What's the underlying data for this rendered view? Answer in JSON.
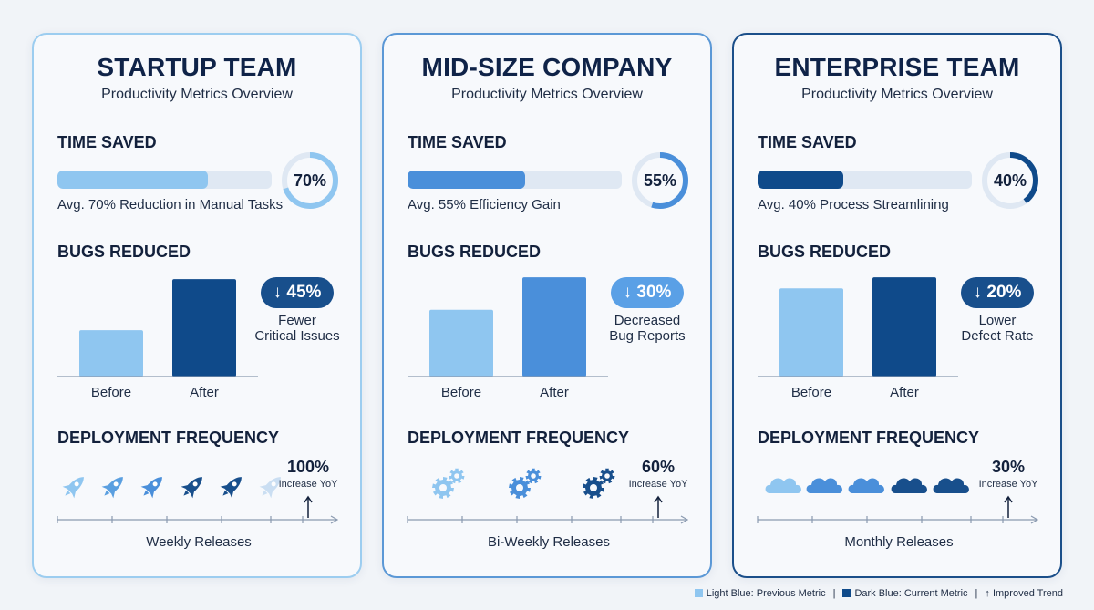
{
  "colors": {
    "light": "#8fc6f0",
    "medium": "#4a8fda",
    "dark": "#0f4a8a",
    "track": "#dfe8f3"
  },
  "cards": [
    {
      "title": "STARTUP TEAM",
      "subtitle": "Productivity Metrics Overview",
      "time_heading": "TIME SAVED",
      "time_pct": 70,
      "time_pct_label": "70%",
      "time_caption": "Avg. 70% Reduction in Manual Tasks",
      "bugs_heading": "BUGS REDUCED",
      "before_label": "Before",
      "after_label": "After",
      "bug_badge": "↓ 45%",
      "bug_caption_1": "Fewer",
      "bug_caption_2": "Critical Issues",
      "deploy_heading": "DEPLOYMENT FREQUENCY",
      "deploy_pct": "100%",
      "deploy_pct_label": "Increase YoY",
      "deploy_icon": "rocket-icon",
      "release_label": "Weekly Releases"
    },
    {
      "title": "MID-SIZE COMPANY",
      "subtitle": "Productivity Metrics Overview",
      "time_heading": "TIME SAVED",
      "time_pct": 55,
      "time_pct_label": "55%",
      "time_caption": "Avg. 55% Efficiency Gain",
      "bugs_heading": "BUGS REDUCED",
      "before_label": "Before",
      "after_label": "After",
      "bug_badge": "↓ 30%",
      "bug_caption_1": "Decreased",
      "bug_caption_2": "Bug Reports",
      "deploy_heading": "DEPLOYMENT FREQUENCY",
      "deploy_pct": "60%",
      "deploy_pct_label": "Increase YoY",
      "deploy_icon": "gears-icon",
      "release_label": "Bi-Weekly Releases"
    },
    {
      "title": "ENTERPRISE TEAM",
      "subtitle": "Productivity Metrics Overview",
      "time_heading": "TIME SAVED",
      "time_pct": 40,
      "time_pct_label": "40%",
      "time_caption": "Avg. 40% Process Streamlining",
      "bugs_heading": "BUGS REDUCED",
      "before_label": "Before",
      "after_label": "After",
      "bug_badge": "↓ 20%",
      "bug_caption_1": "Lower",
      "bug_caption_2": "Defect Rate",
      "deploy_heading": "DEPLOYMENT FREQUENCY",
      "deploy_pct": "30%",
      "deploy_pct_label": "Increase YoY",
      "deploy_icon": "cloud-icon",
      "release_label": "Monthly Releases"
    }
  ],
  "legend": {
    "light": "Light Blue: Previous Metric",
    "dark": "Dark Blue: Current Metric",
    "trend": "Improved Trend",
    "trend_icon": "↑"
  },
  "chart_data": [
    {
      "type": "bar",
      "title": "BUGS REDUCED — STARTUP TEAM",
      "categories": [
        "Before",
        "After"
      ],
      "values": [
        50,
        105
      ],
      "ylim": [
        0,
        110
      ],
      "annotation": "↓ 45%"
    },
    {
      "type": "bar",
      "title": "BUGS REDUCED — MID-SIZE COMPANY",
      "categories": [
        "Before",
        "After"
      ],
      "values": [
        72,
        107
      ],
      "ylim": [
        0,
        110
      ],
      "annotation": "↓ 30%"
    },
    {
      "type": "bar",
      "title": "BUGS REDUCED — ENTERPRISE TEAM",
      "categories": [
        "Before",
        "After"
      ],
      "values": [
        95,
        107
      ],
      "ylim": [
        0,
        110
      ],
      "annotation": "↓ 20%"
    }
  ]
}
